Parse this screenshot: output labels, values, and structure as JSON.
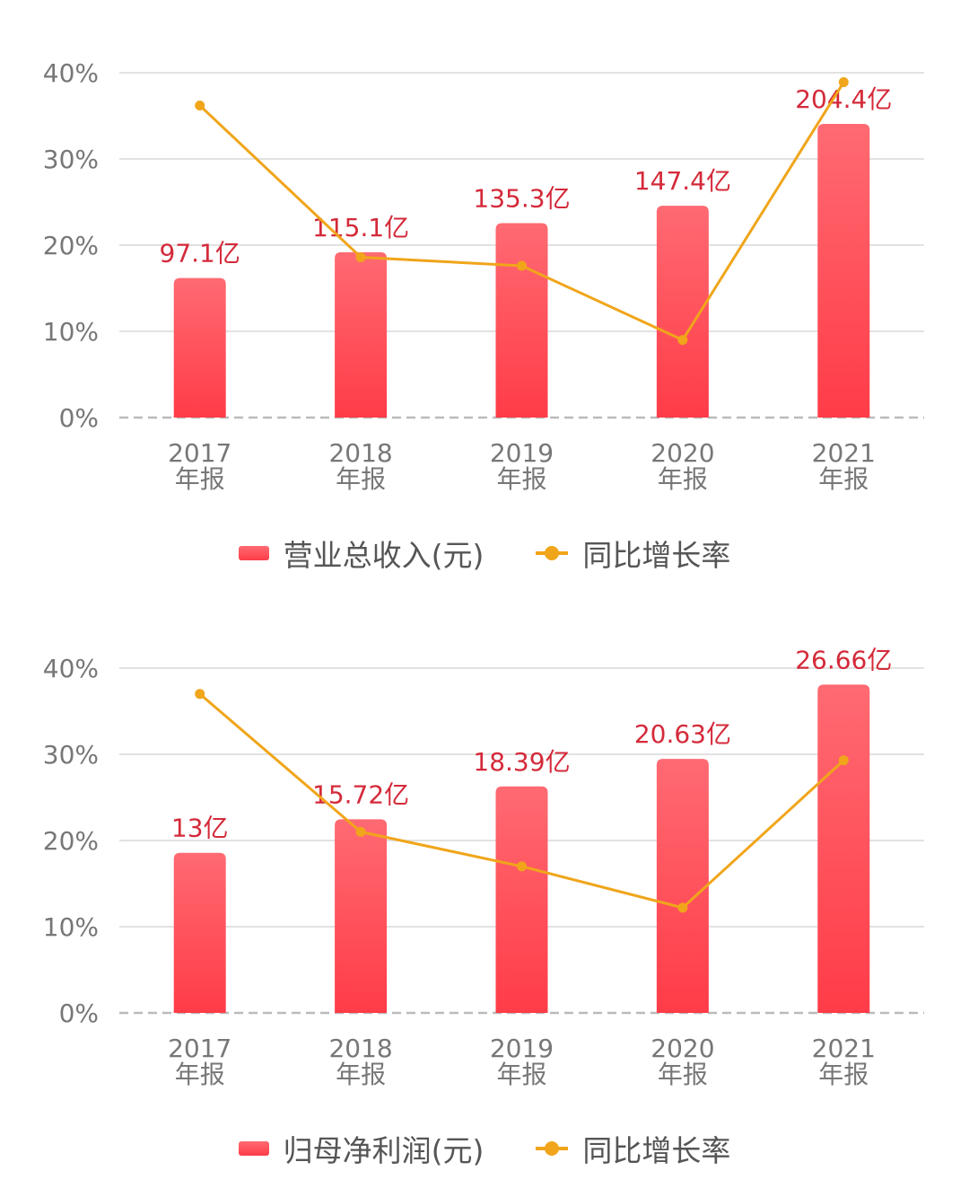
{
  "colors": {
    "bar_top": "#ff6a72",
    "bar_bottom": "#ff3c48",
    "line": "#f0a51a",
    "value_label": "#d42a3a",
    "grid": "#e2e2e2",
    "axis": "#bbbbbb",
    "tick_text": "#777777"
  },
  "chart_data": [
    {
      "type": "bar",
      "categories": [
        "2017\n年报",
        "2018\n年报",
        "2019\n年报",
        "2020\n年报",
        "2021\n年报"
      ],
      "y_ticks": [
        "0%",
        "10%",
        "20%",
        "30%",
        "40%"
      ],
      "ylim": [
        0,
        40
      ],
      "grid": true,
      "legend_position": "bottom",
      "series": [
        {
          "name": "营业总收入(元)",
          "type": "bar",
          "values": [
            97.1,
            115.1,
            135.3,
            147.4,
            204.4
          ],
          "labels": [
            "97.1亿",
            "115.1亿",
            "135.3亿",
            "147.4亿",
            "204.4亿"
          ]
        },
        {
          "name": "同比增长率",
          "type": "line",
          "values": [
            36.2,
            18.6,
            17.6,
            9.0,
            38.9
          ]
        }
      ],
      "bar_scale_max": 240
    },
    {
      "type": "bar",
      "categories": [
        "2017\n年报",
        "2018\n年报",
        "2019\n年报",
        "2020\n年报",
        "2021\n年报"
      ],
      "y_ticks": [
        "0%",
        "10%",
        "20%",
        "30%",
        "40%"
      ],
      "ylim": [
        0,
        40
      ],
      "grid": true,
      "legend_position": "bottom",
      "series": [
        {
          "name": "归母净利润(元)",
          "type": "bar",
          "values": [
            13,
            15.72,
            18.39,
            20.63,
            26.66
          ],
          "labels": [
            "13亿",
            "15.72亿",
            "18.39亿",
            "20.63亿",
            "26.66亿"
          ]
        },
        {
          "name": "同比增长率",
          "type": "line",
          "values": [
            37.0,
            21.0,
            17.0,
            12.2,
            29.3
          ]
        }
      ],
      "bar_scale_max": 28
    }
  ]
}
